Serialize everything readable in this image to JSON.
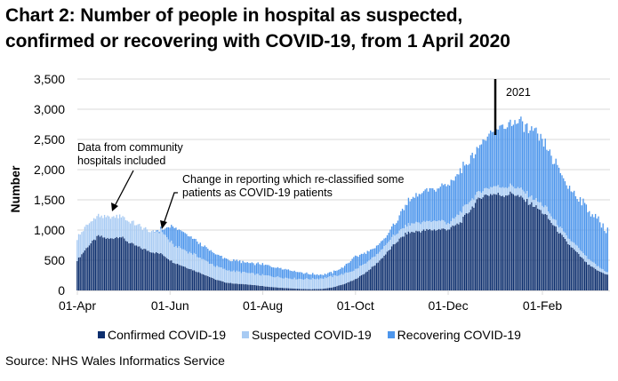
{
  "header": {
    "title_line1": "Chart 2: Number of people in hospital as suspected,",
    "title_line2": "confirmed or recovering with COVID-19, from 1 April 2020"
  },
  "footer": {
    "source": "Source: NHS Wales Informatics Service"
  },
  "chart_data": {
    "type": "bar",
    "stacked": true,
    "title": "Chart 2: Number of people in hospital as suspected, confirmed or recovering with COVID-19, from 1 April 2020",
    "xlabel": "",
    "ylabel": "Number",
    "ylim": [
      0,
      3500
    ],
    "y_ticks": [
      0,
      500,
      1000,
      1500,
      2000,
      2500,
      3000,
      3500
    ],
    "y_tick_labels": [
      "0",
      "500",
      "1,000",
      "1,500",
      "2,000",
      "2,500",
      "3,000",
      "3,500"
    ],
    "x_tick_labels": [
      "01-Apr",
      "01-Jun",
      "01-Aug",
      "01-Oct",
      "01-Dec",
      "01-Feb"
    ],
    "x_tick_days": [
      0,
      61,
      122,
      183,
      244,
      306
    ],
    "x_range_days": [
      0,
      350
    ],
    "grid": "horizontal",
    "legend_position": "bottom",
    "sampling": "weekly samples from 01-Apr-2020 (day offsets), values estimated from the chart; bars are daily",
    "day_offsets": [
      0,
      7,
      14,
      21,
      28,
      35,
      42,
      49,
      56,
      63,
      70,
      77,
      84,
      91,
      98,
      105,
      112,
      119,
      126,
      133,
      140,
      147,
      154,
      161,
      168,
      175,
      182,
      189,
      196,
      203,
      210,
      217,
      224,
      231,
      238,
      245,
      252,
      259,
      266,
      273,
      280,
      287,
      294,
      301,
      308,
      315,
      322,
      329,
      336,
      343,
      349
    ],
    "series": [
      {
        "name": "Confirmed COVID-19",
        "color": "#0d2f6e",
        "values": [
          500,
          730,
          900,
          850,
          900,
          780,
          700,
          640,
          600,
          470,
          400,
          330,
          260,
          180,
          130,
          110,
          100,
          80,
          60,
          45,
          35,
          25,
          20,
          25,
          50,
          100,
          170,
          280,
          420,
          600,
          800,
          950,
          980,
          1000,
          1010,
          1020,
          1120,
          1350,
          1560,
          1600,
          1580,
          1610,
          1500,
          1400,
          1250,
          1030,
          800,
          620,
          430,
          320,
          260
        ]
      },
      {
        "name": "Suspected COVID-19",
        "color": "#a8cbf3",
        "values": [
          370,
          370,
          330,
          350,
          350,
          350,
          350,
          330,
          380,
          290,
          280,
          270,
          240,
          220,
          210,
          200,
          190,
          180,
          180,
          175,
          165,
          165,
          170,
          175,
          180,
          170,
          160,
          160,
          140,
          150,
          150,
          130,
          140,
          140,
          150,
          90,
          180,
          150,
          100,
          130,
          140,
          120,
          140,
          110,
          130,
          100,
          100,
          100,
          100,
          70,
          40
        ]
      },
      {
        "name": "Recovering COVID-19",
        "color": "#4d96ec",
        "values": [
          0,
          0,
          0,
          0,
          0,
          0,
          0,
          0,
          40,
          300,
          280,
          250,
          220,
          200,
          180,
          170,
          170,
          180,
          170,
          160,
          140,
          110,
          80,
          60,
          70,
          110,
          210,
          180,
          140,
          130,
          200,
          370,
          460,
          510,
          540,
          660,
          680,
          700,
          790,
          870,
          1000,
          1070,
          1080,
          1090,
          1020,
          950,
          850,
          840,
          820,
          760,
          690
        ]
      }
    ],
    "annotations": [
      {
        "text_line1": "Data from community",
        "text_line2": "hospitals included",
        "points_to_day": 23
      },
      {
        "text_line1": "Change in reporting which re-classified some",
        "text_line2": "patients as COVID-19 patients",
        "points_to_day": 56
      },
      {
        "text": "2021",
        "marker_day": 275
      }
    ]
  }
}
